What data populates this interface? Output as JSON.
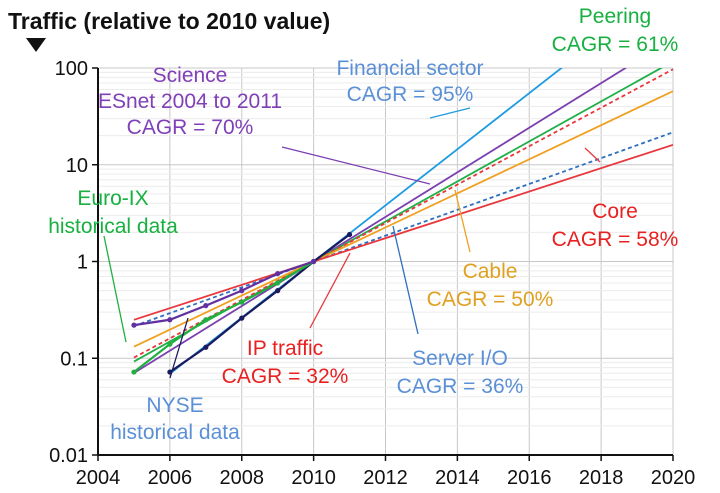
{
  "chart_data": {
    "type": "line",
    "title": "Traffic (relative to 2010 value)",
    "xlim": [
      2004,
      2020
    ],
    "ylim": [
      0.01,
      100
    ],
    "y_scale": "log",
    "grid": true,
    "x_ticks": [
      "2004",
      "2006",
      "2008",
      "2010",
      "2012",
      "2014",
      "2016",
      "2018",
      "2020"
    ],
    "y_ticks": [
      "0.01",
      "0.1",
      "1",
      "10",
      "100"
    ],
    "y_tick_values": [
      0.01,
      0.1,
      1,
      10,
      100
    ],
    "x_tick_values": [
      2004,
      2006,
      2008,
      2010,
      2012,
      2014,
      2016,
      2018,
      2020
    ],
    "series": [
      {
        "key": "financial",
        "color": "#1e9be0",
        "dash": false,
        "cagr": 0.95,
        "x_start": 2006,
        "x_end": 2020,
        "text": [
          "Financial sector",
          "CAGR = 95%"
        ],
        "text_color": "#5b8fd6"
      },
      {
        "key": "science",
        "color": "#7b3fb0",
        "dash": false,
        "cagr": 0.7,
        "x_start": 2005,
        "x_end": 2020,
        "text": [
          "Science",
          "ESnet 2004 to 2011",
          "CAGR = 70%"
        ],
        "text_color": "#8040b8"
      },
      {
        "key": "peering",
        "color": "#1fb04a",
        "dash": false,
        "cagr": 0.61,
        "x_start": 2005,
        "x_end": 2020,
        "text": [
          "Peering",
          "CAGR = 61%"
        ],
        "text_color": "#18b040"
      },
      {
        "key": "core",
        "color": "#e8383d",
        "dash": true,
        "cagr": 0.58,
        "x_start": 2005,
        "x_end": 2020,
        "text": [
          "Core",
          "CAGR = 58%"
        ],
        "text_color": "#e82020"
      },
      {
        "key": "cable",
        "color": "#f0a020",
        "dash": false,
        "cagr": 0.5,
        "x_start": 2005,
        "x_end": 2020,
        "text": [
          "Cable",
          "CAGR = 50%"
        ],
        "text_color": "#e0a020"
      },
      {
        "key": "server",
        "color": "#2f6fc0",
        "dash": true,
        "cagr": 0.36,
        "x_start": 2005,
        "x_end": 2020,
        "text": [
          "Server I/O",
          "CAGR = 36%"
        ],
        "text_color": "#5b8fd6"
      },
      {
        "key": "ip",
        "color": "#e8383d",
        "dash": false,
        "cagr": 0.32,
        "x_start": 2005,
        "x_end": 2020,
        "text": [
          "IP traffic",
          "CAGR = 32%"
        ],
        "text_color": "#e82020"
      }
    ],
    "historical": [
      {
        "key": "nyse",
        "color": "#1a1a60",
        "x": [
          2006,
          2007,
          2008,
          2009,
          2010,
          2011
        ],
        "y": [
          0.072,
          0.13,
          0.26,
          0.5,
          1.0,
          1.9
        ]
      },
      {
        "key": "euroix",
        "color": "#20b040",
        "x": [
          2005,
          2006,
          2007,
          2008,
          2009,
          2010
        ],
        "y": [
          0.072,
          0.14,
          0.25,
          0.38,
          0.6,
          1.0
        ]
      },
      {
        "key": "esnet",
        "color": "#6030a0",
        "x": [
          2005,
          2006,
          2007,
          2008,
          2009,
          2010
        ],
        "y": [
          0.22,
          0.25,
          0.35,
          0.5,
          0.75,
          1.0
        ]
      }
    ],
    "historical_labels": [
      {
        "key": "nyse",
        "text": [
          "NYSE",
          "historical data"
        ],
        "text_color": "#5b8fd6"
      },
      {
        "key": "euroix",
        "text": [
          "Euro-IX",
          "historical data"
        ],
        "text_color": "#18b040"
      }
    ]
  }
}
